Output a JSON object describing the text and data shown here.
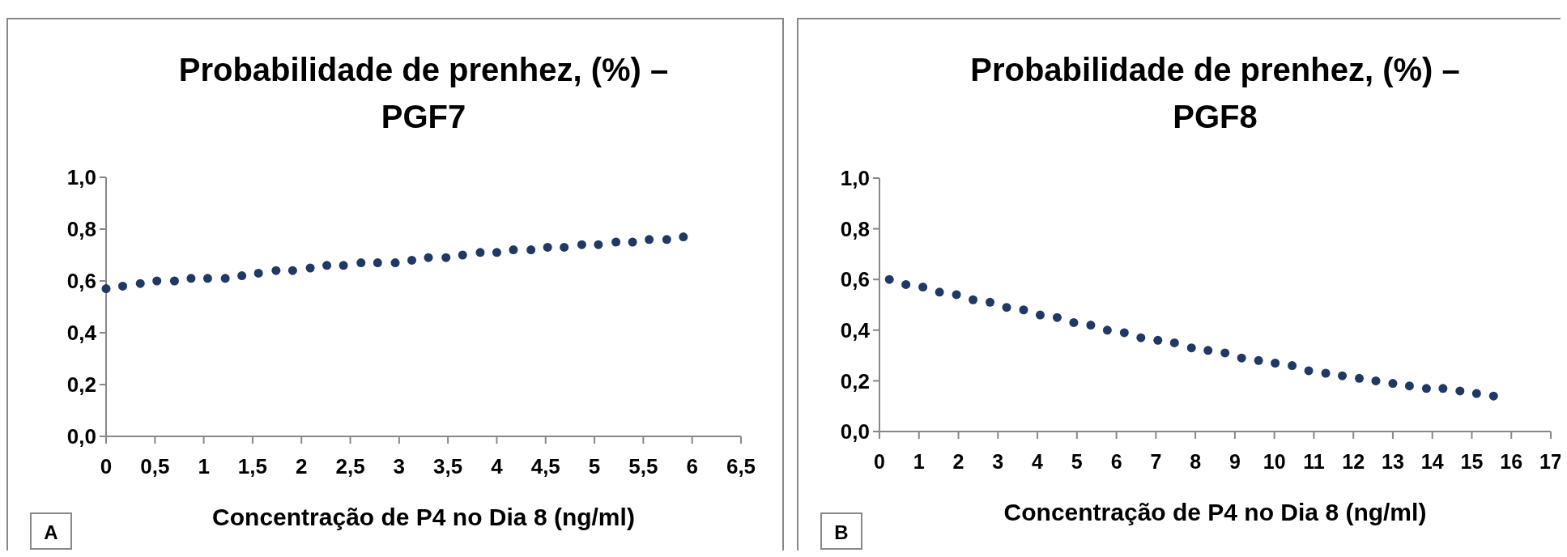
{
  "chart_data": [
    {
      "type": "scatter",
      "title": "Probabilidade de prenhez, (%) – PGF7",
      "xlabel": "Concentração de P4 no Dia 8 (ng/ml)",
      "annotations": [
        "A"
      ],
      "marker": "circle",
      "grid": false,
      "xlim": [
        0,
        6.5
      ],
      "xticks": [
        0,
        {
          "value": 0.5,
          "label": "0,5"
        },
        1,
        {
          "value": 1.5,
          "label": "1,5"
        },
        2,
        {
          "value": 2.5,
          "label": "2,5"
        },
        3,
        {
          "value": 3.5,
          "label": "3,5"
        },
        4,
        {
          "value": 4.5,
          "label": "4,5"
        },
        5,
        {
          "value": 5.5,
          "label": "5,5"
        },
        6,
        {
          "value": 6.5,
          "label": "6,5"
        }
      ],
      "ylim": [
        0,
        1
      ],
      "yticks": [
        {
          "value": 0,
          "label": "0,0"
        },
        {
          "value": 0.2,
          "label": "0,2"
        },
        {
          "value": 0.4,
          "label": "0,4"
        },
        {
          "value": 0.6,
          "label": "0,6"
        },
        {
          "value": 0.8,
          "label": "0,8"
        },
        {
          "value": 1,
          "label": "1,0"
        }
      ],
      "series": [
        {
          "color": "#1f3864",
          "x": [
            0,
            0.17,
            0.35,
            0.52,
            0.7,
            0.87,
            1.04,
            1.22,
            1.39,
            1.56,
            1.74,
            1.91,
            2.09,
            2.26,
            2.43,
            2.61,
            2.78,
            2.96,
            3.13,
            3.3,
            3.48,
            3.65,
            3.83,
            4.0,
            4.17,
            4.35,
            4.52,
            4.69,
            4.87,
            5.04,
            5.22,
            5.39,
            5.56,
            5.74,
            5.91
          ],
          "values": [
            0.57,
            0.58,
            0.59,
            0.6,
            0.6,
            0.61,
            0.61,
            0.61,
            0.62,
            0.63,
            0.64,
            0.64,
            0.65,
            0.66,
            0.66,
            0.67,
            0.67,
            0.67,
            0.68,
            0.69,
            0.69,
            0.7,
            0.71,
            0.71,
            0.72,
            0.72,
            0.73,
            0.73,
            0.74,
            0.74,
            0.75,
            0.75,
            0.76,
            0.76,
            0.77
          ]
        }
      ]
    },
    {
      "type": "scatter",
      "title": "Probabilidade de prenhez, (%) – PGF8",
      "xlabel": "Concentração de P4 no Dia 8 (ng/ml)",
      "annotations": [
        "B"
      ],
      "marker": "circle",
      "grid": false,
      "xlim": [
        0,
        17
      ],
      "xticks": [
        0,
        1,
        2,
        3,
        4,
        5,
        6,
        7,
        8,
        9,
        10,
        11,
        12,
        13,
        14,
        15,
        16,
        17
      ],
      "ylim": [
        0,
        1
      ],
      "yticks": [
        {
          "value": 0,
          "label": "0,0"
        },
        {
          "value": 0.2,
          "label": "0,2"
        },
        {
          "value": 0.4,
          "label": "0,4"
        },
        {
          "value": 0.6,
          "label": "0,6"
        },
        {
          "value": 0.8,
          "label": "0,8"
        },
        {
          "value": 1,
          "label": "1,0"
        }
      ],
      "series": [
        {
          "color": "#1f3864",
          "x": [
            0.25,
            0.67,
            1.1,
            1.52,
            1.95,
            2.37,
            2.8,
            3.22,
            3.65,
            4.07,
            4.5,
            4.92,
            5.35,
            5.77,
            6.2,
            6.62,
            7.05,
            7.47,
            7.9,
            8.32,
            8.75,
            9.17,
            9.6,
            10.02,
            10.45,
            10.87,
            11.3,
            11.72,
            12.15,
            12.57,
            13.0,
            13.42,
            13.85,
            14.27,
            14.7,
            15.12,
            15.55
          ],
          "values": [
            0.6,
            0.58,
            0.57,
            0.55,
            0.54,
            0.52,
            0.51,
            0.49,
            0.48,
            0.46,
            0.45,
            0.43,
            0.42,
            0.4,
            0.39,
            0.37,
            0.36,
            0.35,
            0.33,
            0.32,
            0.31,
            0.29,
            0.28,
            0.27,
            0.26,
            0.24,
            0.23,
            0.22,
            0.21,
            0.2,
            0.19,
            0.18,
            0.17,
            0.17,
            0.16,
            0.15,
            0.14
          ]
        }
      ]
    }
  ]
}
